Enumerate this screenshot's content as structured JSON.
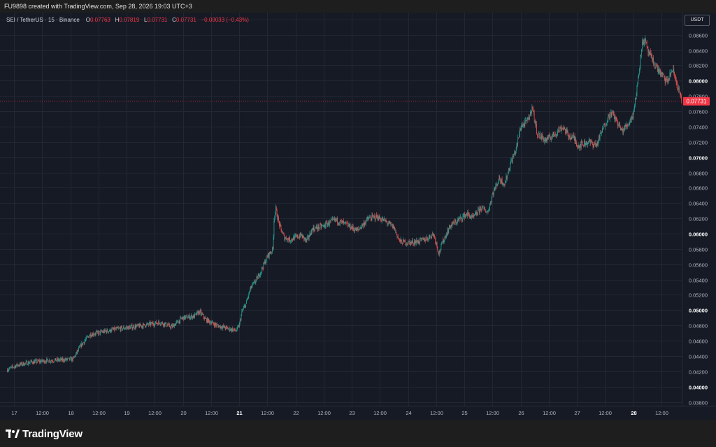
{
  "header": {
    "attribution": "FU9898 created with TradingView.com, Sep 28, 2026 19:03 UTC+3"
  },
  "legend": {
    "symbol": "SEI / TetherUS · 15 · Binance",
    "o_label": "O",
    "o_value": "0.07763",
    "h_label": "H",
    "h_value": "0.07819",
    "l_label": "L",
    "l_value": "0.07731",
    "c_label": "C",
    "c_value": "0.07731",
    "change": "−0.00033 (−0.43%)"
  },
  "currency_button": "USDT",
  "brand": {
    "name": "TradingView",
    "icon": "tradingview-logo-icon"
  },
  "colors": {
    "up": "#26a69a",
    "down": "#ef5350",
    "last_price": "#f23645",
    "background": "#161a25",
    "grid": "#232734"
  },
  "chart_data": {
    "type": "candlestick",
    "interval": "15",
    "ylim": [
      0.0375,
      0.0889
    ],
    "grid": true,
    "last_price": 0.07731,
    "last_price_label": "0.07731",
    "y_ticks": [
      {
        "value": 0.088,
        "label": "0.08800",
        "bold": false
      },
      {
        "value": 0.086,
        "label": "0.08600",
        "bold": false
      },
      {
        "value": 0.084,
        "label": "0.08400",
        "bold": false
      },
      {
        "value": 0.082,
        "label": "0.08200",
        "bold": false
      },
      {
        "value": 0.08,
        "label": "0.08000",
        "bold": true
      },
      {
        "value": 0.078,
        "label": "0.07800",
        "bold": false
      },
      {
        "value": 0.076,
        "label": "0.07600",
        "bold": false
      },
      {
        "value": 0.074,
        "label": "0.07400",
        "bold": false
      },
      {
        "value": 0.072,
        "label": "0.07200",
        "bold": false
      },
      {
        "value": 0.07,
        "label": "0.07000",
        "bold": true
      },
      {
        "value": 0.068,
        "label": "0.06800",
        "bold": false
      },
      {
        "value": 0.066,
        "label": "0.06600",
        "bold": false
      },
      {
        "value": 0.064,
        "label": "0.06400",
        "bold": false
      },
      {
        "value": 0.062,
        "label": "0.06200",
        "bold": false
      },
      {
        "value": 0.06,
        "label": "0.06000",
        "bold": true
      },
      {
        "value": 0.058,
        "label": "0.05800",
        "bold": false
      },
      {
        "value": 0.056,
        "label": "0.05600",
        "bold": false
      },
      {
        "value": 0.054,
        "label": "0.05400",
        "bold": false
      },
      {
        "value": 0.052,
        "label": "0.05200",
        "bold": false
      },
      {
        "value": 0.05,
        "label": "0.05000",
        "bold": true
      },
      {
        "value": 0.048,
        "label": "0.04800",
        "bold": false
      },
      {
        "value": 0.046,
        "label": "0.04600",
        "bold": false
      },
      {
        "value": 0.044,
        "label": "0.04400",
        "bold": false
      },
      {
        "value": 0.042,
        "label": "0.04200",
        "bold": false
      },
      {
        "value": 0.04,
        "label": "0.04000",
        "bold": true
      },
      {
        "value": 0.038,
        "label": "0.03800",
        "bold": false
      }
    ],
    "x_ticks": [
      {
        "day": 0.0,
        "label": "17",
        "bold": false
      },
      {
        "day": 0.5,
        "label": "12:00",
        "bold": false
      },
      {
        "day": 1.0,
        "label": "18",
        "bold": false
      },
      {
        "day": 1.5,
        "label": "12:00",
        "bold": false
      },
      {
        "day": 2.0,
        "label": "19",
        "bold": false
      },
      {
        "day": 2.5,
        "label": "12:00",
        "bold": false
      },
      {
        "day": 3.0,
        "label": "20",
        "bold": false
      },
      {
        "day": 3.5,
        "label": "12:00",
        "bold": false
      },
      {
        "day": 4.0,
        "label": "21",
        "bold": true
      },
      {
        "day": 4.5,
        "label": "12:00",
        "bold": false
      },
      {
        "day": 5.0,
        "label": "22",
        "bold": false
      },
      {
        "day": 5.5,
        "label": "12:00",
        "bold": false
      },
      {
        "day": 6.0,
        "label": "23",
        "bold": false
      },
      {
        "day": 6.5,
        "label": "12:00",
        "bold": false
      },
      {
        "day": 7.0,
        "label": "24",
        "bold": false
      },
      {
        "day": 7.5,
        "label": "12:00",
        "bold": false
      },
      {
        "day": 8.0,
        "label": "25",
        "bold": false
      },
      {
        "day": 8.5,
        "label": "12:00",
        "bold": false
      },
      {
        "day": 9.0,
        "label": "26",
        "bold": false
      },
      {
        "day": 9.5,
        "label": "12:00",
        "bold": false
      },
      {
        "day": 10.0,
        "label": "27",
        "bold": false
      },
      {
        "day": 10.5,
        "label": "12:00",
        "bold": false
      },
      {
        "day": 11.0,
        "label": "28",
        "bold": true
      },
      {
        "day": 11.5,
        "label": "12:00",
        "bold": false
      }
    ],
    "price_path": [
      [
        -0.12,
        0.0422
      ],
      [
        0.05,
        0.0428
      ],
      [
        0.3,
        0.0432
      ],
      [
        0.6,
        0.0434
      ],
      [
        0.9,
        0.0435
      ],
      [
        1.05,
        0.0436
      ],
      [
        1.2,
        0.0455
      ],
      [
        1.35,
        0.0468
      ],
      [
        1.6,
        0.0472
      ],
      [
        1.9,
        0.0476
      ],
      [
        2.3,
        0.048
      ],
      [
        2.6,
        0.0484
      ],
      [
        2.8,
        0.0478
      ],
      [
        3.0,
        0.049
      ],
      [
        3.2,
        0.0492
      ],
      [
        3.3,
        0.0498
      ],
      [
        3.4,
        0.0488
      ],
      [
        3.6,
        0.048
      ],
      [
        3.8,
        0.0476
      ],
      [
        3.95,
        0.0473
      ],
      [
        4.0,
        0.048
      ],
      [
        4.05,
        0.0498
      ],
      [
        4.12,
        0.0508
      ],
      [
        4.2,
        0.0528
      ],
      [
        4.35,
        0.0545
      ],
      [
        4.5,
        0.057
      ],
      [
        4.6,
        0.058
      ],
      [
        4.62,
        0.062
      ],
      [
        4.65,
        0.0632
      ],
      [
        4.72,
        0.061
      ],
      [
        4.8,
        0.0595
      ],
      [
        4.9,
        0.0592
      ],
      [
        5.1,
        0.0598
      ],
      [
        5.2,
        0.059
      ],
      [
        5.3,
        0.0606
      ],
      [
        5.5,
        0.061
      ],
      [
        5.7,
        0.0618
      ],
      [
        5.9,
        0.0612
      ],
      [
        6.1,
        0.0604
      ],
      [
        6.3,
        0.062
      ],
      [
        6.45,
        0.0622
      ],
      [
        6.6,
        0.0616
      ],
      [
        6.75,
        0.0608
      ],
      [
        6.85,
        0.059
      ],
      [
        7.0,
        0.0588
      ],
      [
        7.2,
        0.059
      ],
      [
        7.35,
        0.0594
      ],
      [
        7.45,
        0.06
      ],
      [
        7.5,
        0.0588
      ],
      [
        7.55,
        0.0574
      ],
      [
        7.62,
        0.059
      ],
      [
        7.75,
        0.061
      ],
      [
        7.9,
        0.0618
      ],
      [
        8.05,
        0.0626
      ],
      [
        8.15,
        0.062
      ],
      [
        8.3,
        0.0634
      ],
      [
        8.42,
        0.0628
      ],
      [
        8.5,
        0.0652
      ],
      [
        8.62,
        0.0672
      ],
      [
        8.72,
        0.0665
      ],
      [
        8.82,
        0.0692
      ],
      [
        8.92,
        0.071
      ],
      [
        9.0,
        0.074
      ],
      [
        9.1,
        0.0745
      ],
      [
        9.17,
        0.0755
      ],
      [
        9.2,
        0.0768
      ],
      [
        9.3,
        0.073
      ],
      [
        9.45,
        0.0722
      ],
      [
        9.6,
        0.073
      ],
      [
        9.75,
        0.074
      ],
      [
        9.85,
        0.0728
      ],
      [
        9.95,
        0.0725
      ],
      [
        10.02,
        0.0715
      ],
      [
        10.2,
        0.072
      ],
      [
        10.35,
        0.0716
      ],
      [
        10.45,
        0.0735
      ],
      [
        10.55,
        0.0752
      ],
      [
        10.62,
        0.0758
      ],
      [
        10.7,
        0.0748
      ],
      [
        10.8,
        0.0734
      ],
      [
        10.9,
        0.0742
      ],
      [
        11.0,
        0.0756
      ],
      [
        11.05,
        0.078
      ],
      [
        11.1,
        0.081
      ],
      [
        11.15,
        0.0845
      ],
      [
        11.2,
        0.0855
      ],
      [
        11.25,
        0.084
      ],
      [
        11.35,
        0.0825
      ],
      [
        11.5,
        0.0808
      ],
      [
        11.6,
        0.0798
      ],
      [
        11.7,
        0.0815
      ],
      [
        11.8,
        0.079
      ],
      [
        11.86,
        0.0773
      ]
    ]
  }
}
